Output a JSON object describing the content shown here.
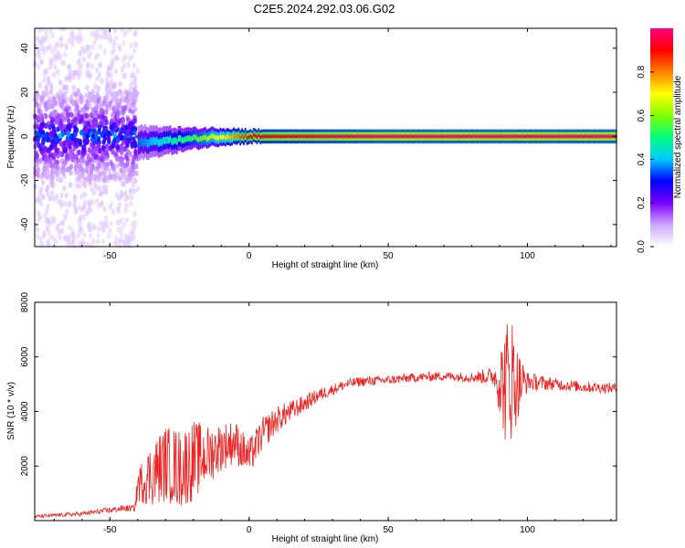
{
  "title": "C2E5.2024.292.03.06.G02",
  "chart_data": [
    {
      "type": "heatmap",
      "xlabel": "Height of straight line (km)",
      "ylabel": "Frequency (Hz)",
      "xlim": [
        -77,
        132
      ],
      "ylim": [
        -50,
        49
      ],
      "xticks": [
        -50,
        0,
        50,
        100
      ],
      "yticks": [
        -40,
        -20,
        0,
        20,
        40
      ],
      "colorbar": {
        "label": "Normalized spectral amplitude",
        "range": [
          0.0,
          1.0
        ],
        "ticks": [
          0.0,
          0.2,
          0.4,
          0.6,
          0.8
        ],
        "colormap": [
          "#ffffff",
          "#cfa6ff",
          "#7a00ff",
          "#0000ff",
          "#00c8ff",
          "#00ff80",
          "#80ff00",
          "#ffff00",
          "#ff8000",
          "#ff0000",
          "#ff0080"
        ]
      },
      "noise_region": {
        "x": [
          -77,
          -40
        ],
        "freq_spread": [
          -50,
          49
        ]
      },
      "band": [
        {
          "x": -40,
          "freq": -3,
          "width": 5,
          "amp": 0.35
        },
        {
          "x": -30,
          "freq": -2,
          "width": 4,
          "amp": 0.45
        },
        {
          "x": -20,
          "freq": -1,
          "width": 3,
          "amp": 0.55
        },
        {
          "x": -10,
          "freq": 0,
          "width": 2.5,
          "amp": 0.7
        },
        {
          "x": 0,
          "freq": 0,
          "width": 2,
          "amp": 0.9
        },
        {
          "x": 50,
          "freq": 0,
          "width": 2,
          "amp": 1.0
        },
        {
          "x": 132,
          "freq": 0,
          "width": 2,
          "amp": 1.0
        }
      ]
    },
    {
      "type": "line",
      "xlabel": "Height of straight line (km)",
      "ylabel": "SNR (10 * v/v)",
      "xlim": [
        -77,
        132
      ],
      "ylim": [
        0,
        8000
      ],
      "xticks": [
        -50,
        0,
        50,
        100
      ],
      "yticks": [
        2000,
        4000,
        6000,
        8000
      ],
      "series": [
        {
          "color": "#ee2222",
          "x": [
            -77,
            -60,
            -45,
            -41,
            -40,
            -35,
            -30,
            -25,
            -20,
            -15,
            -10,
            -5,
            0,
            5,
            10,
            15,
            20,
            25,
            30,
            35,
            40,
            50,
            60,
            70,
            80,
            88,
            92,
            94,
            96,
            100,
            110,
            120,
            132
          ],
          "y": [
            150,
            250,
            450,
            450,
            1300,
            1700,
            2100,
            1900,
            2200,
            2400,
            2700,
            2900,
            2300,
            3200,
            3700,
            4000,
            4300,
            4600,
            4800,
            5000,
            5100,
            5150,
            5250,
            5300,
            5250,
            5300,
            5000,
            5400,
            5000,
            5100,
            5000,
            4900,
            4850
          ],
          "noise_amp": [
            60,
            80,
            120,
            120,
            600,
            1200,
            1400,
            1500,
            1500,
            1100,
            900,
            800,
            700,
            600,
            500,
            400,
            300,
            250,
            200,
            180,
            180,
            170,
            170,
            170,
            180,
            350,
            2200,
            2600,
            1500,
            350,
            220,
            200,
            200
          ]
        }
      ]
    }
  ]
}
